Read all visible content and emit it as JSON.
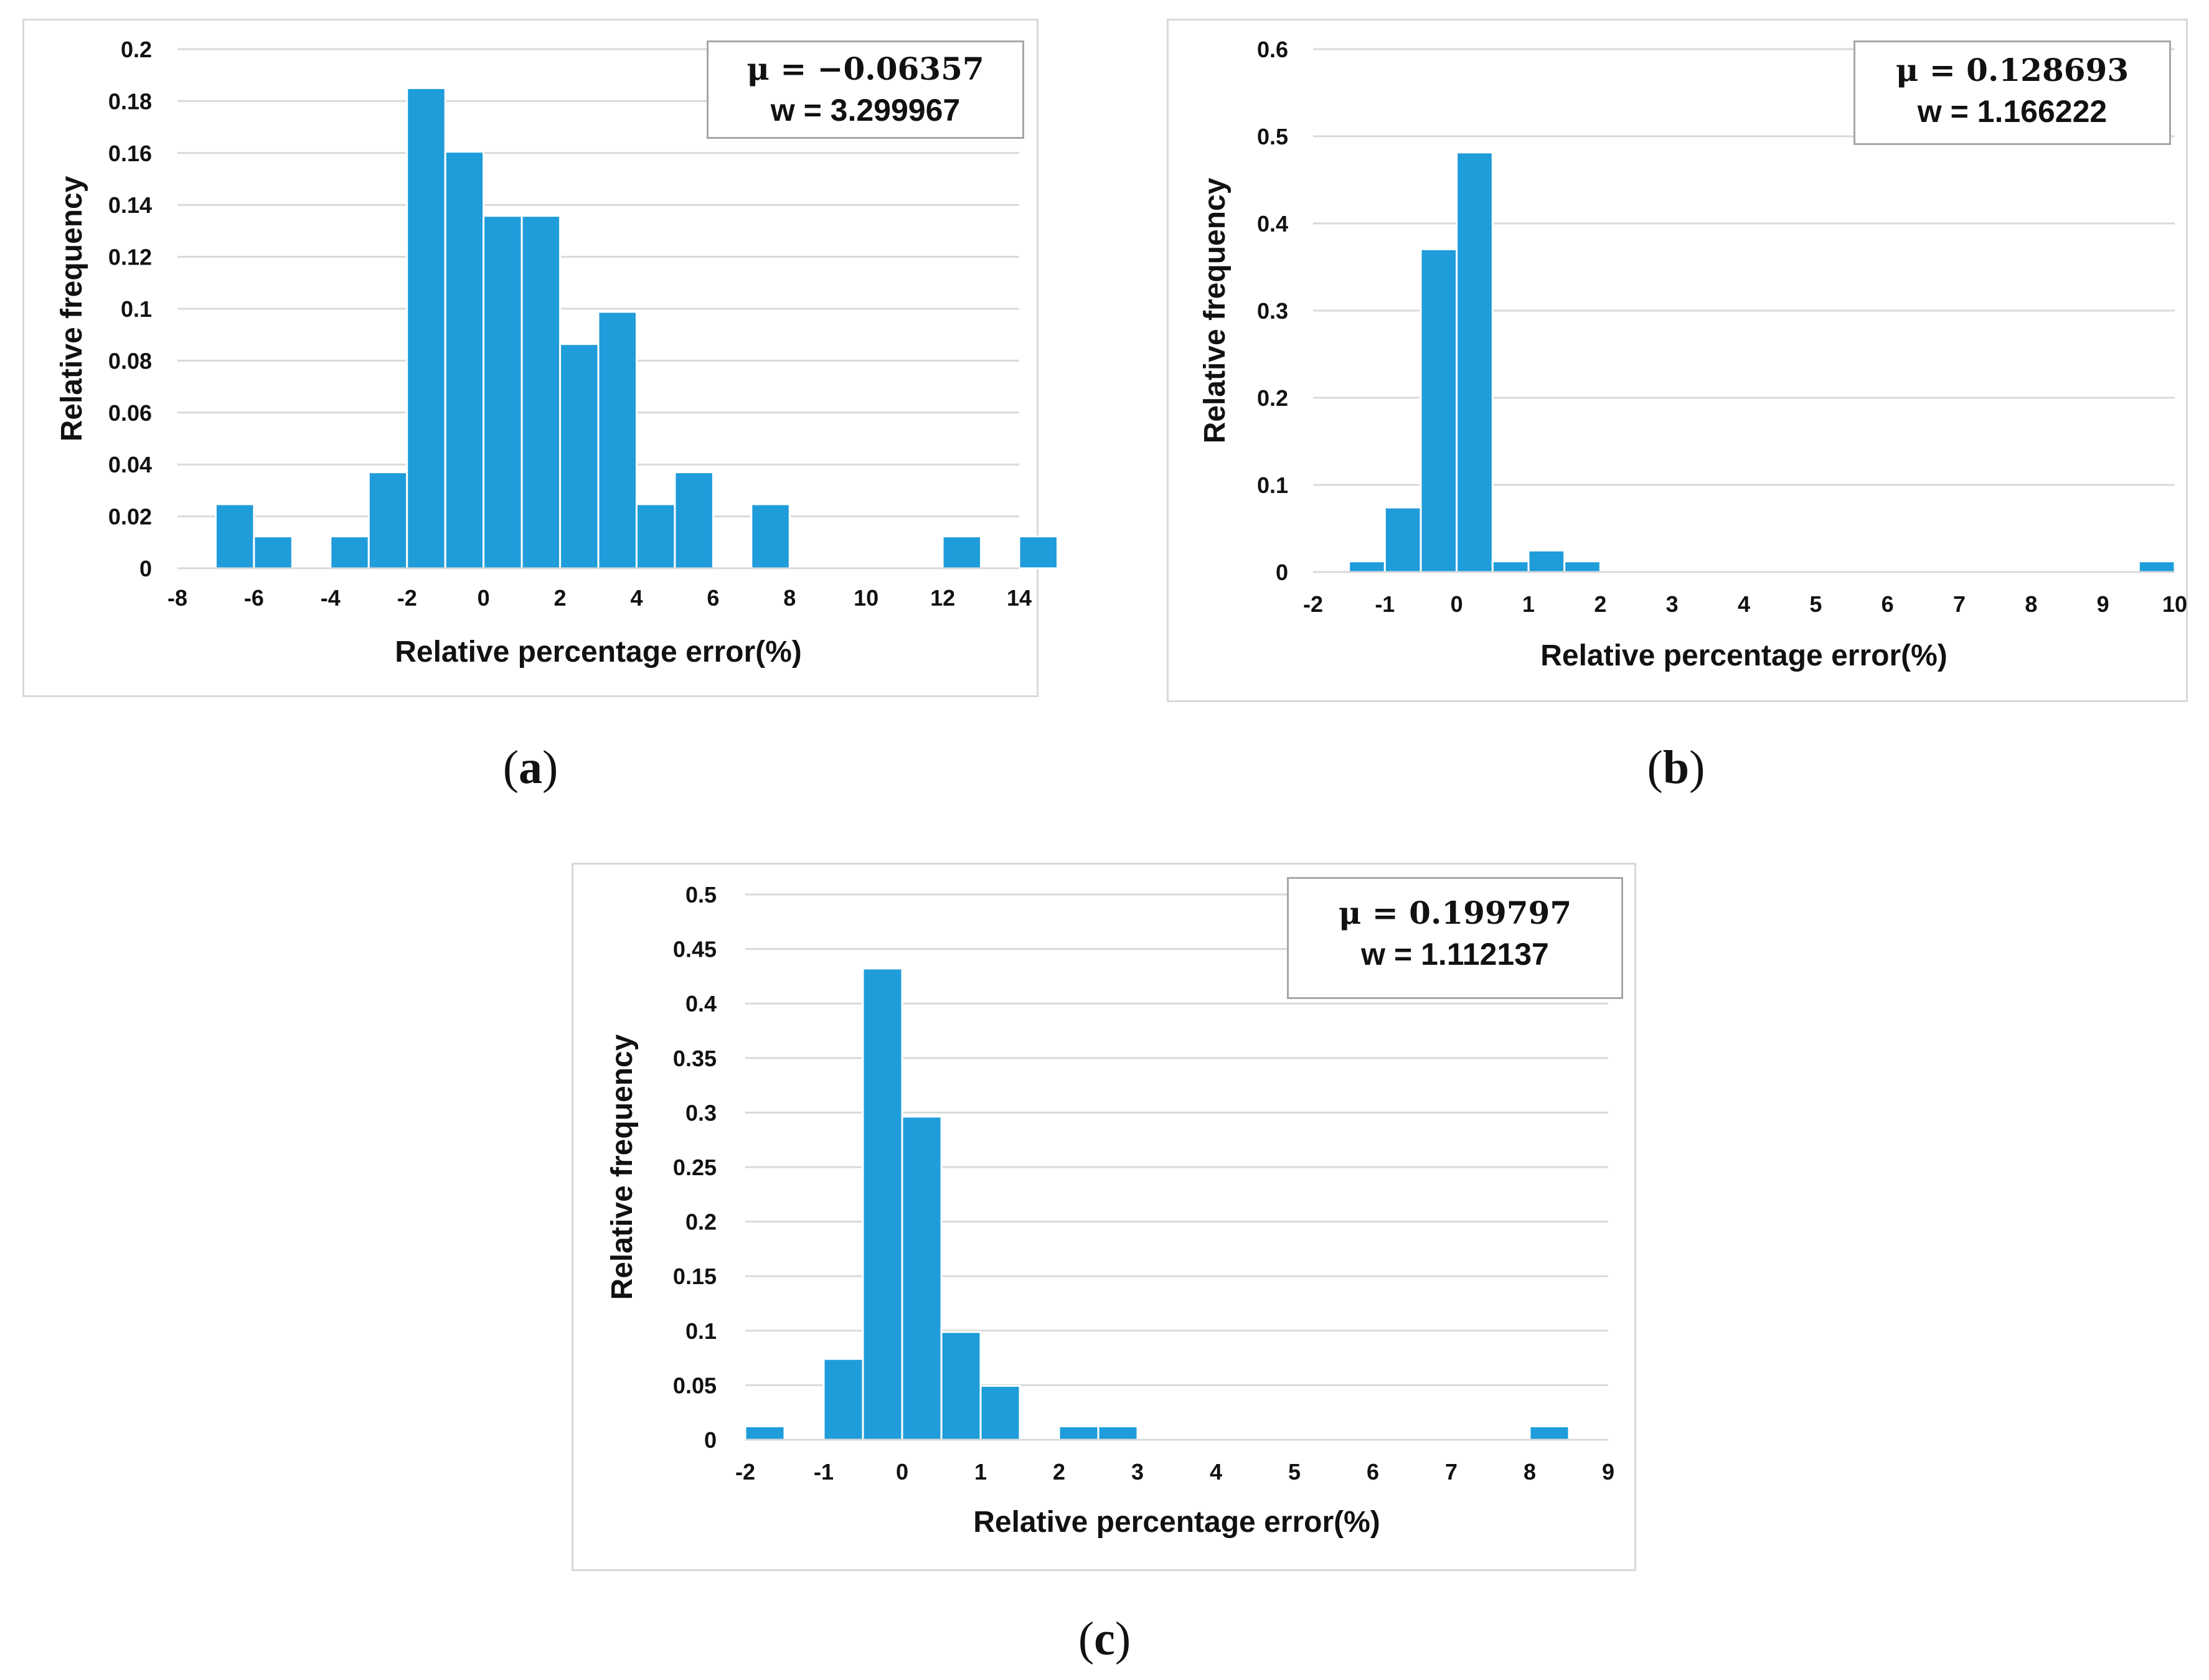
{
  "colors": {
    "bar": "#1f9cda",
    "grid": "#d9d9d9",
    "text": "#111111"
  },
  "chart_data": [
    {
      "id": "a",
      "type": "bar",
      "caption_letter": "a",
      "xlabel": "Relative percentage error(%)",
      "ylabel": "Relative frequency",
      "legend": {
        "mu": "μ = −0.06357",
        "w": "w =  3.299967"
      },
      "xlim": [
        -8,
        14
      ],
      "ylim": [
        0,
        0.2
      ],
      "xticks": [
        -8,
        -6,
        -4,
        -2,
        0,
        2,
        4,
        6,
        8,
        10,
        12,
        14
      ],
      "yticks": [
        0,
        0.02,
        0.04,
        0.06,
        0.08,
        0.1,
        0.12,
        0.14,
        0.16,
        0.18,
        0.2
      ],
      "bin_width": 1,
      "bins": [
        {
          "x0": -7,
          "value": 0.0247
        },
        {
          "x0": -6,
          "value": 0.0123
        },
        {
          "x0": -4,
          "value": 0.0123
        },
        {
          "x0": -3,
          "value": 0.037
        },
        {
          "x0": -2,
          "value": 0.185
        },
        {
          "x0": -1,
          "value": 0.1605
        },
        {
          "x0": 0,
          "value": 0.1358
        },
        {
          "x0": 1,
          "value": 0.1358
        },
        {
          "x0": 2,
          "value": 0.0864
        },
        {
          "x0": 3,
          "value": 0.0988
        },
        {
          "x0": 4,
          "value": 0.0247
        },
        {
          "x0": 5,
          "value": 0.037
        },
        {
          "x0": 7,
          "value": 0.0247
        },
        {
          "x0": 12,
          "value": 0.0123
        },
        {
          "x0": 14,
          "value": 0.0123
        }
      ]
    },
    {
      "id": "b",
      "type": "bar",
      "caption_letter": "b",
      "xlabel": "Relative percentage error(%)",
      "ylabel": "Relative frequency",
      "legend": {
        "mu": "μ = 0.128693",
        "w": "w =  1.166222"
      },
      "xlim": [
        -2,
        10
      ],
      "ylim": [
        0,
        0.6
      ],
      "xticks": [
        -2,
        -1,
        0,
        1,
        2,
        3,
        4,
        5,
        6,
        7,
        8,
        9,
        10
      ],
      "yticks": [
        0,
        0.1,
        0.2,
        0.3,
        0.4,
        0.5,
        0.6
      ],
      "bin_width": 0.5,
      "bins": [
        {
          "x0": -1.5,
          "value": 0.0123
        },
        {
          "x0": -1.0,
          "value": 0.0741
        },
        {
          "x0": -0.5,
          "value": 0.3704
        },
        {
          "x0": 0.0,
          "value": 0.4815
        },
        {
          "x0": 0.5,
          "value": 0.0123
        },
        {
          "x0": 1.0,
          "value": 0.0247
        },
        {
          "x0": 1.5,
          "value": 0.0123
        },
        {
          "x0": 9.5,
          "value": 0.0123
        }
      ]
    },
    {
      "id": "c",
      "type": "bar",
      "caption_letter": "c",
      "xlabel": "Relative percentage error(%)",
      "ylabel": "Relative frequency",
      "legend": {
        "mu": "μ = 0.199797",
        "w": "w =  1.112137"
      },
      "xlim": [
        -2,
        9
      ],
      "ylim": [
        0,
        0.5
      ],
      "xticks": [
        -2,
        -1,
        0,
        1,
        2,
        3,
        4,
        5,
        6,
        7,
        8,
        9
      ],
      "yticks": [
        0,
        0.05,
        0.1,
        0.15,
        0.2,
        0.25,
        0.3,
        0.35,
        0.4,
        0.45,
        0.5
      ],
      "bin_width": 0.5,
      "bins": [
        {
          "x0": -2.0,
          "value": 0.0123
        },
        {
          "x0": -1.0,
          "value": 0.0741
        },
        {
          "x0": -0.5,
          "value": 0.4321
        },
        {
          "x0": 0.0,
          "value": 0.2963
        },
        {
          "x0": 0.5,
          "value": 0.0988
        },
        {
          "x0": 1.0,
          "value": 0.0494
        },
        {
          "x0": 2.0,
          "value": 0.0123
        },
        {
          "x0": 2.5,
          "value": 0.0123
        },
        {
          "x0": 8.0,
          "value": 0.0123
        }
      ]
    }
  ]
}
